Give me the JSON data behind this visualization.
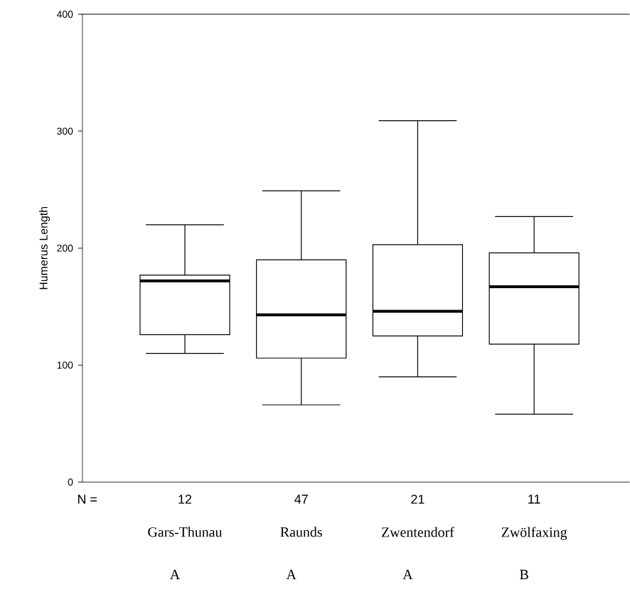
{
  "chart_data": {
    "type": "box",
    "ylabel": "Humerus Length",
    "categories": [
      "Gars-Thunau",
      "Raunds",
      "Zwentendorf",
      "Zwölfaxing"
    ],
    "boxes": [
      {
        "low": 110,
        "q1": 126,
        "median": 172,
        "q3": 177,
        "high": 220
      },
      {
        "low": 66,
        "q1": 106,
        "median": 143,
        "q3": 190,
        "high": 249
      },
      {
        "low": 90,
        "q1": 125,
        "median": 146,
        "q3": 203,
        "high": 309
      },
      {
        "low": 58,
        "q1": 118,
        "median": 167,
        "q3": 196,
        "high": 227
      }
    ],
    "ylim": [
      0,
      400
    ],
    "yticks": [
      0,
      100,
      200,
      300,
      400
    ],
    "annotations": [
      "N =",
      "12",
      "47",
      "21",
      "11",
      "A",
      "A",
      "A",
      "B"
    ]
  }
}
